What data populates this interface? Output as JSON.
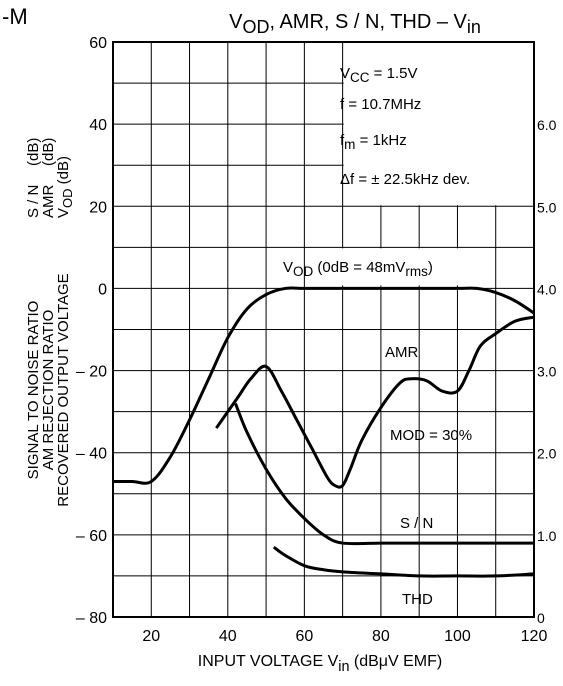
{
  "top_left_fragment": "-M",
  "chart_data": {
    "type": "line",
    "title_parts": [
      "V",
      "OD",
      ", AMR, S / N, THD  –  V",
      "in"
    ],
    "xlabel_parts": [
      "INPUT VOLTAGE    V",
      "in",
      "    (dBμV EMF)"
    ],
    "ylabel_left_lines": [
      "SIGNAL TO NOISE RATIO",
      "AM REJECTION RATIO",
      "RECOVERED OUTPUT VOLTAGE"
    ],
    "ylabel_left_units": [
      {
        "name": "S / N",
        "unit": "(dB)"
      },
      {
        "name": "AMR",
        "unit": "(dB)"
      },
      {
        "name": "V",
        "sub": "OD",
        "unit": "(dB)"
      }
    ],
    "xlim": [
      10,
      120
    ],
    "ylim": [
      -80,
      60
    ],
    "y2lim": [
      0,
      7
    ],
    "x_ticks": [
      20,
      40,
      60,
      80,
      100,
      120
    ],
    "y_ticks": [
      -80,
      -60,
      -40,
      -20,
      0,
      20,
      40,
      60
    ],
    "y2_ticks": [
      {
        "y": -80,
        "label": "0"
      },
      {
        "y": -60,
        "label": "1.0"
      },
      {
        "y": -40,
        "label": "2.0"
      },
      {
        "y": -20,
        "label": "3.0"
      },
      {
        "y": 0,
        "label": "4.0"
      },
      {
        "y": 20,
        "label": "5.0"
      },
      {
        "y": 40,
        "label": "6.0"
      }
    ],
    "grid": true,
    "conditions": [
      {
        "main": "V",
        "sub": "CC",
        "rest": " = 1.5V"
      },
      {
        "main": "f = 10.7MHz",
        "sub": "",
        "rest": ""
      },
      {
        "main": "f",
        "sub": "m",
        "rest": " = 1kHz"
      },
      {
        "main": "Δf = ± 22.5kHz  dev.",
        "sub": "",
        "rest": ""
      }
    ],
    "series": [
      {
        "name": "V_OD",
        "label_parts": [
          "V",
          "OD",
          "  (0dB = 48mV",
          "rms",
          ")"
        ],
        "axis": "left",
        "x": [
          10,
          15,
          20,
          25,
          30,
          35,
          40,
          45,
          50,
          55,
          60,
          65,
          70,
          80,
          90,
          100,
          105,
          110,
          115,
          120
        ],
        "y": [
          -47,
          -47,
          -47,
          -41,
          -32,
          -22,
          -12,
          -5,
          -1.5,
          0,
          0,
          0,
          0,
          0,
          0,
          0,
          0,
          -1,
          -3,
          -6
        ]
      },
      {
        "name": "AMR",
        "label_parts": [
          "AMR"
        ],
        "axis": "left",
        "x": [
          37,
          40,
          43,
          46,
          50,
          54,
          58,
          62,
          66,
          68,
          70,
          72,
          75,
          80,
          85,
          88,
          92,
          96,
          100,
          103,
          106,
          110,
          115,
          120
        ],
        "y": [
          -34,
          -30,
          -26,
          -22,
          -19,
          -25,
          -32,
          -39,
          -46,
          -48,
          -48,
          -44,
          -37,
          -29,
          -23,
          -22,
          -22.5,
          -25,
          -25,
          -20,
          -14,
          -11,
          -8,
          -7
        ]
      },
      {
        "name": "S/N",
        "label_parts": [
          "S / N"
        ],
        "axis": "left",
        "x": [
          42,
          45,
          50,
          55,
          60,
          65,
          70,
          80,
          90,
          100,
          110,
          120
        ],
        "y": [
          -28,
          -35,
          -44,
          -51,
          -56,
          -60,
          -62,
          -62,
          -62,
          -62,
          -62,
          -62
        ]
      },
      {
        "name": "THD",
        "label_parts": [
          "THD"
        ],
        "axis": "right",
        "x": [
          52,
          55,
          60,
          65,
          70,
          80,
          90,
          100,
          110,
          120
        ],
        "y": [
          -63,
          -65,
          -67.5,
          -68.5,
          -69,
          -69.5,
          -70,
          -70,
          -70,
          -69.5
        ]
      }
    ],
    "annotations": [
      {
        "text_parts": [
          "MOD = 30%"
        ]
      }
    ]
  }
}
